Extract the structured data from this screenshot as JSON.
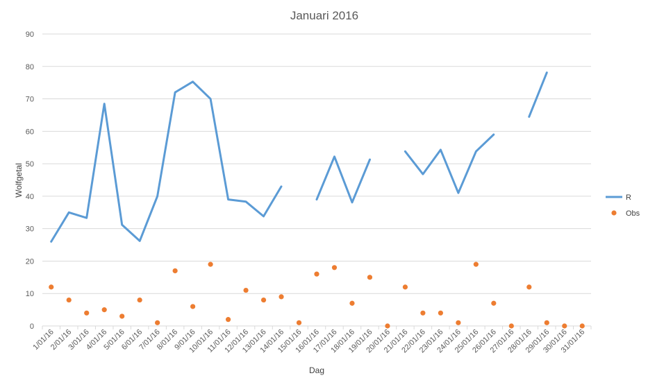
{
  "chart_data": {
    "type": "line",
    "title": "Januari 2016",
    "xlabel": "Dag",
    "ylabel": "Wolfgetal",
    "ylim": [
      0,
      90
    ],
    "yticks": [
      0,
      10,
      20,
      30,
      40,
      50,
      60,
      70,
      80,
      90
    ],
    "grid": true,
    "legend_position": "right",
    "categories": [
      "1/01/16",
      "2/01/16",
      "3/01/16",
      "4/01/16",
      "5/01/16",
      "6/01/16",
      "7/01/16",
      "8/01/16",
      "9/01/16",
      "10/01/16",
      "11/01/16",
      "12/01/16",
      "13/01/16",
      "14/01/16",
      "15/01/16",
      "16/01/16",
      "17/01/16",
      "18/01/16",
      "19/01/16",
      "20/01/16",
      "21/01/16",
      "22/01/16",
      "23/01/16",
      "24/01/16",
      "25/01/16",
      "26/01/16",
      "27/01/16",
      "28/01/16",
      "29/01/16",
      "30/01/16",
      "31/01/16"
    ],
    "series": [
      {
        "name": "R",
        "style": "line",
        "color": "#5B9BD5",
        "values": [
          26,
          35,
          33.3,
          68.5,
          31.2,
          26.2,
          40,
          72,
          75.3,
          70,
          39,
          38.3,
          33.8,
          43,
          null,
          39,
          52.2,
          38.1,
          51.3,
          null,
          53.8,
          46.8,
          54.3,
          41,
          53.8,
          59,
          null,
          64.5,
          78.1,
          null,
          null
        ]
      },
      {
        "name": "Obs",
        "style": "marker",
        "color": "#ED7D31",
        "values": [
          12,
          8,
          4,
          5,
          3,
          8,
          1,
          17,
          6,
          19,
          2,
          11,
          8,
          9,
          1,
          16,
          18,
          7,
          15,
          0,
          12,
          4,
          4,
          1,
          19,
          7,
          0,
          12,
          1,
          0,
          0
        ]
      }
    ]
  }
}
